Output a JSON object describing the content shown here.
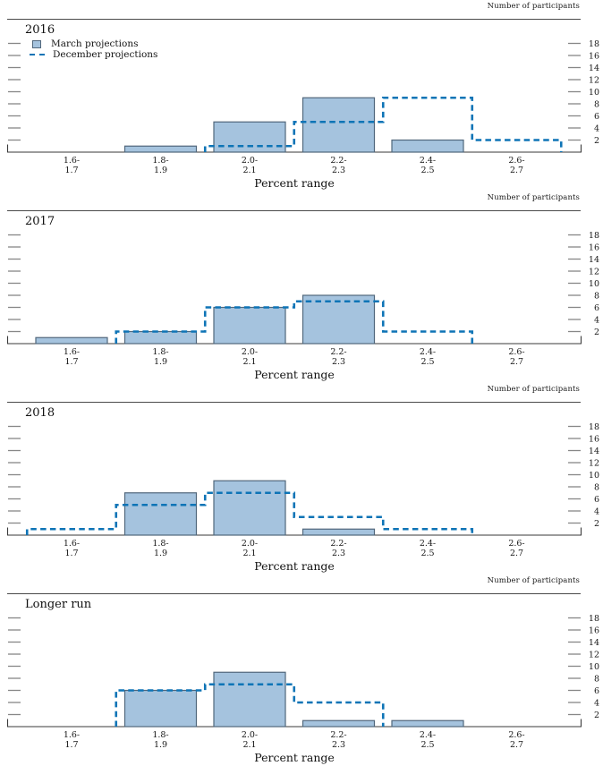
{
  "labels": {
    "participants": "Number of participants",
    "xlabel": "Percent range"
  },
  "legend": {
    "march": "March projections",
    "december": "December projections",
    "position": "top-left of first panel only"
  },
  "colors": {
    "bar_fill": "#a5c3de",
    "bar_edge": "#51677c",
    "december_line": "#0e74b6",
    "tick": "#878787",
    "axis": "#3a3a3a",
    "text": "#161616"
  },
  "chart_data": [
    {
      "type": "bar",
      "title": "2016",
      "categories": [
        "1.6-1.7",
        "1.8-1.9",
        "2.0-2.1",
        "2.2-2.3",
        "2.4-2.5",
        "2.6-2.7"
      ],
      "series": [
        {
          "name": "March projections",
          "style": "bar",
          "values": [
            0,
            1,
            5,
            9,
            2,
            0
          ]
        },
        {
          "name": "December projections",
          "style": "dashed-step",
          "values": [
            0,
            0,
            1,
            5,
            9,
            2
          ]
        }
      ],
      "xlabel": "Percent range",
      "ylabel": "Number of participants",
      "y_ticks": [
        2,
        4,
        6,
        8,
        10,
        12,
        14,
        16,
        18
      ],
      "ylim": [
        0,
        19
      ],
      "grid": "off",
      "y_axis_side": "right"
    },
    {
      "type": "bar",
      "title": "2017",
      "categories": [
        "1.6-1.7",
        "1.8-1.9",
        "2.0-2.1",
        "2.2-2.3",
        "2.4-2.5",
        "2.6-2.7"
      ],
      "series": [
        {
          "name": "March projections",
          "style": "bar",
          "values": [
            1,
            2,
            6,
            8,
            0,
            0
          ]
        },
        {
          "name": "December projections",
          "style": "dashed-step",
          "values": [
            0,
            2,
            6,
            7,
            2,
            0
          ]
        }
      ],
      "xlabel": "Percent range",
      "ylabel": "Number of participants",
      "y_ticks": [
        2,
        4,
        6,
        8,
        10,
        12,
        14,
        16,
        18
      ],
      "ylim": [
        0,
        19
      ],
      "grid": "off",
      "y_axis_side": "right"
    },
    {
      "type": "bar",
      "title": "2018",
      "categories": [
        "1.6-1.7",
        "1.8-1.9",
        "2.0-2.1",
        "2.2-2.3",
        "2.4-2.5",
        "2.6-2.7"
      ],
      "series": [
        {
          "name": "March projections",
          "style": "bar",
          "values": [
            0,
            7,
            9,
            1,
            0,
            0
          ]
        },
        {
          "name": "December projections",
          "style": "dashed-step",
          "values": [
            1,
            5,
            7,
            3,
            1,
            0
          ]
        }
      ],
      "xlabel": "Percent range",
      "ylabel": "Number of participants",
      "y_ticks": [
        2,
        4,
        6,
        8,
        10,
        12,
        14,
        16,
        18
      ],
      "ylim": [
        0,
        19
      ],
      "grid": "off",
      "y_axis_side": "right"
    },
    {
      "type": "bar",
      "title": "Longer run",
      "categories": [
        "1.6-1.7",
        "1.8-1.9",
        "2.0-2.1",
        "2.2-2.3",
        "2.4-2.5",
        "2.6-2.7"
      ],
      "series": [
        {
          "name": "March projections",
          "style": "bar",
          "values": [
            0,
            6,
            9,
            1,
            1,
            0
          ]
        },
        {
          "name": "December projections",
          "style": "dashed-step",
          "values": [
            0,
            6,
            7,
            4,
            0,
            0
          ]
        }
      ],
      "xlabel": "Percent range",
      "ylabel": "Number of participants",
      "y_ticks": [
        2,
        4,
        6,
        8,
        10,
        12,
        14,
        16,
        18
      ],
      "ylim": [
        0,
        19
      ],
      "grid": "off",
      "y_axis_side": "right"
    }
  ]
}
